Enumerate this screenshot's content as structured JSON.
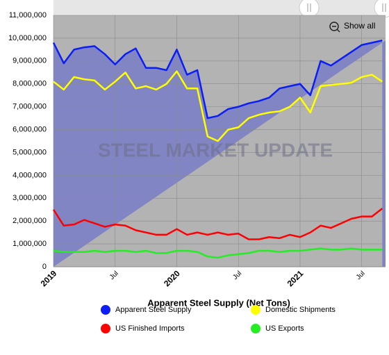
{
  "chart_data": {
    "type": "area",
    "title": "Apparent Steel Supply (Net Tons)",
    "watermark": "STEEL MARKET UPDATE",
    "button": "Show all",
    "background_color": "#b3b3b3",
    "area_color": "#8185c3",
    "grid": true,
    "categories": [
      "2019-01",
      "2019-02",
      "2019-03",
      "2019-04",
      "2019-05",
      "2019-06",
      "2019-07",
      "2019-08",
      "2019-09",
      "2019-10",
      "2019-11",
      "2019-12",
      "2020-01",
      "2020-02",
      "2020-03",
      "2020-04",
      "2020-05",
      "2020-06",
      "2020-07",
      "2020-08",
      "2020-09",
      "2020-10",
      "2020-11",
      "2020-12",
      "2021-01",
      "2021-02",
      "2021-03",
      "2021-04",
      "2021-05",
      "2021-06",
      "2021-07",
      "2021-08",
      "2021-09"
    ],
    "xticks": [
      {
        "value": "2019-01",
        "label": "2019"
      },
      {
        "value": "2019-07",
        "label": "Jul"
      },
      {
        "value": "2020-01",
        "label": "2020"
      },
      {
        "value": "2020-07",
        "label": "Jul"
      },
      {
        "value": "2021-01",
        "label": "2021"
      },
      {
        "value": "2021-07",
        "label": "Jul"
      }
    ],
    "ylim": [
      0,
      11000000
    ],
    "yticks": [
      0,
      {
        "value": 1000000,
        "label": "1,000,000"
      },
      {
        "value": 2000000,
        "label": "2,000,000"
      },
      {
        "value": 3000000,
        "label": "3,000,000"
      },
      {
        "value": 4000000,
        "label": "4,000,000"
      },
      {
        "value": 5000000,
        "label": "5,000,000"
      },
      {
        "value": 6000000,
        "label": "6,000,000"
      },
      {
        "value": 7000000,
        "label": "7,000,000"
      },
      {
        "value": 8000000,
        "label": "8,000,000"
      },
      {
        "value": 9000000,
        "label": "9,000,000"
      },
      {
        "value": 10000000,
        "label": "10,000,000"
      },
      {
        "value": 11000000,
        "label": "11,000,000"
      }
    ],
    "series": [
      {
        "name": "Apparent Steel Supply",
        "color": "#0a1ef5",
        "fill": true,
        "values": [
          9800000,
          8900000,
          9500000,
          9600000,
          9650000,
          9300000,
          8850000,
          9300000,
          9550000,
          8700000,
          8700000,
          8600000,
          9500000,
          8400000,
          8600000,
          6500000,
          6600000,
          6900000,
          7000000,
          7150000,
          7250000,
          7400000,
          7800000,
          7900000,
          8000000,
          7500000,
          9000000,
          8800000,
          9100000,
          9400000,
          9700000,
          9800000,
          9900000
        ]
      },
      {
        "name": "Domestic Shipments",
        "color": "#ffff00",
        "values": [
          8100000,
          7750000,
          8300000,
          8200000,
          8150000,
          7750000,
          8100000,
          8500000,
          7800000,
          7900000,
          7750000,
          8000000,
          8550000,
          7800000,
          7800000,
          5700000,
          5500000,
          6000000,
          6100000,
          6500000,
          6650000,
          6750000,
          6800000,
          7000000,
          7400000,
          6750000,
          7900000,
          7950000,
          8000000,
          8050000,
          8300000,
          8400000,
          8100000
        ]
      },
      {
        "name": "US Finished Imports",
        "color": "#ff0000",
        "values": [
          2500000,
          1800000,
          1850000,
          2050000,
          1900000,
          1750000,
          1850000,
          1800000,
          1600000,
          1500000,
          1400000,
          1400000,
          1650000,
          1400000,
          1500000,
          1400000,
          1500000,
          1400000,
          1450000,
          1200000,
          1200000,
          1300000,
          1250000,
          1400000,
          1300000,
          1500000,
          1800000,
          1700000,
          1900000,
          2100000,
          2200000,
          2200000,
          2550000
        ]
      },
      {
        "name": "US Exports",
        "color": "#22ee22",
        "values": [
          700000,
          650000,
          650000,
          650000,
          700000,
          650000,
          700000,
          700000,
          650000,
          700000,
          600000,
          600000,
          700000,
          700000,
          650000,
          450000,
          400000,
          500000,
          550000,
          600000,
          700000,
          700000,
          650000,
          700000,
          700000,
          750000,
          800000,
          750000,
          750000,
          800000,
          750000,
          750000,
          750000
        ]
      }
    ]
  }
}
